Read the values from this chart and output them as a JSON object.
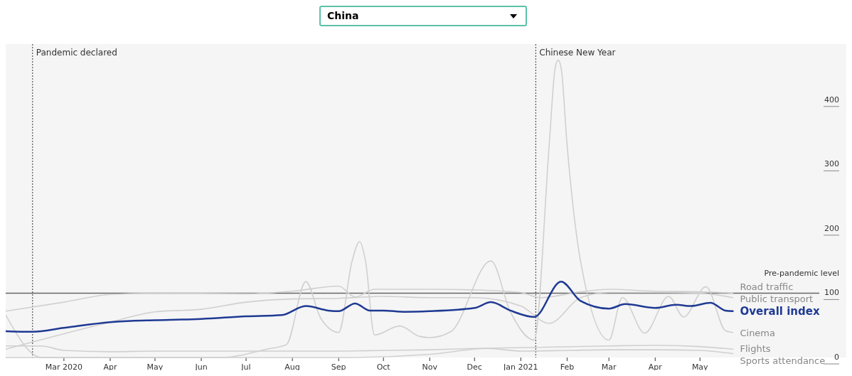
{
  "chart_data": {
    "type": "line",
    "title": "China",
    "xlim": [
      "2020-01-22",
      "2021-08-07"
    ],
    "xticks": [
      {
        "value": "2020-03-01",
        "label": "Mar 2020"
      },
      {
        "value": "2020-04-01",
        "label": "Apr"
      },
      {
        "value": "2020-05-01",
        "label": "May"
      },
      {
        "value": "2020-06-01",
        "label": "Jun"
      },
      {
        "value": "2020-07-01",
        "label": "Jul"
      },
      {
        "value": "2020-08-01",
        "label": "Aug"
      },
      {
        "value": "2020-09-01",
        "label": "Sep"
      },
      {
        "value": "2020-10-01",
        "label": "Oct"
      },
      {
        "value": "2020-11-01",
        "label": "Nov"
      },
      {
        "value": "2020-12-01",
        "label": "Dec"
      },
      {
        "value": "2021-01-01",
        "label": "Jan 2021"
      },
      {
        "value": "2021-02-01",
        "label": "Feb"
      },
      {
        "value": "2021-03-01",
        "label": "Mar"
      },
      {
        "value": "2021-04-01",
        "label": "Apr"
      },
      {
        "value": "2021-05-01",
        "label": "May"
      }
    ],
    "ylim": [
      0,
      487
    ],
    "yticks": [
      0,
      100,
      200,
      300,
      400
    ],
    "ref_lines": [
      {
        "axis": "y",
        "value": 100,
        "label": "Pre-pandemic level",
        "color": "#666666",
        "line_style": "solid"
      },
      {
        "axis": "x",
        "value": "2020-02-09",
        "label": "Pandemic declared",
        "color": "#333333",
        "line_style": "dotted"
      },
      {
        "axis": "x",
        "value": "2021-01-11",
        "label": "Chinese New Year",
        "color": "#333333",
        "line_style": "dotted"
      }
    ],
    "series": [
      {
        "name": "Road traffic",
        "color": "#d0d0d0",
        "x": [
          "2020-01-22",
          "2020-03-01",
          "2020-04-01",
          "2020-05-01",
          "2020-07-01",
          "2020-08-01",
          "2020-09-01",
          "2020-09-12",
          "2020-09-25",
          "2020-11-01",
          "2020-12-01",
          "2021-01-01",
          "2021-01-14",
          "2021-02-10",
          "2021-03-01",
          "2021-04-01",
          "2021-05-01",
          "2021-05-23"
        ],
        "values": [
          72,
          86,
          98,
          100,
          99,
          103,
          111,
          94,
          106,
          106,
          105,
          101,
          93,
          102,
          106,
          103,
          102,
          100
        ]
      },
      {
        "name": "Public transport",
        "color": "#d0d0d0",
        "x": [
          "2020-01-22",
          "2020-04-01",
          "2020-05-01",
          "2020-06-01",
          "2020-07-01",
          "2020-08-01",
          "2020-09-01",
          "2020-10-01",
          "2020-11-01",
          "2020-12-01",
          "2021-01-01",
          "2021-01-20",
          "2021-02-10",
          "2021-03-01",
          "2021-04-01",
          "2021-05-01",
          "2021-05-23"
        ],
        "values": [
          13,
          55,
          71,
          75,
          86,
          91,
          92,
          95,
          93,
          93,
          80,
          53,
          93,
          101,
          101,
          100,
          93
        ]
      },
      {
        "name": "Overall index",
        "color": "#1f3a93",
        "x": [
          "2020-01-22",
          "2020-02-09",
          "2020-03-01",
          "2020-04-01",
          "2020-04-15",
          "2020-05-01",
          "2020-06-01",
          "2020-07-01",
          "2020-07-25",
          "2020-08-10",
          "2020-08-25",
          "2020-09-01",
          "2020-09-12",
          "2020-09-22",
          "2020-10-01",
          "2020-10-15",
          "2020-11-01",
          "2020-12-01",
          "2020-12-12",
          "2020-12-25",
          "2021-01-10",
          "2021-01-28",
          "2021-02-10",
          "2021-03-01",
          "2021-03-12",
          "2021-04-01",
          "2021-04-15",
          "2021-04-25",
          "2021-05-08",
          "2021-05-18",
          "2021-05-23"
        ],
        "values": [
          41,
          40,
          46,
          55,
          57,
          58,
          60,
          64,
          66,
          80,
          73,
          72,
          84,
          73,
          73,
          71,
          72,
          77,
          86,
          73,
          63,
          118,
          88,
          76,
          83,
          77,
          82,
          80,
          85,
          73,
          72
        ]
      },
      {
        "name": "Cinema",
        "color": "#d0d0d0",
        "x": [
          "2020-01-22",
          "2020-02-15",
          "2020-06-15",
          "2020-07-15",
          "2020-07-28",
          "2020-08-10",
          "2020-08-20",
          "2020-09-01",
          "2020-09-10",
          "2020-09-15",
          "2020-09-19",
          "2020-09-25",
          "2020-10-12",
          "2020-10-25",
          "2020-11-01",
          "2020-11-15",
          "2020-12-12",
          "2020-12-25",
          "2021-01-10",
          "2021-01-20",
          "2021-01-24",
          "2021-01-26",
          "2021-01-28",
          "2021-02-01",
          "2021-02-10",
          "2021-03-01",
          "2021-03-10",
          "2021-03-25",
          "2021-04-10",
          "2021-04-20",
          "2021-05-05",
          "2021-05-18",
          "2021-05-23"
        ],
        "values": [
          66,
          0,
          0,
          13,
          20,
          118,
          61,
          39,
          150,
          180,
          150,
          35,
          49,
          33,
          31,
          40,
          150,
          71,
          27,
          330,
          450,
          462,
          450,
          330,
          150,
          27,
          93,
          38,
          95,
          63,
          110,
          42,
          39
        ]
      },
      {
        "name": "Flights",
        "color": "#d0d0d0",
        "x": [
          "2020-01-22",
          "2020-02-15",
          "2020-03-01",
          "2020-04-01",
          "2020-05-01",
          "2020-07-01",
          "2020-09-01",
          "2020-10-01",
          "2020-11-01",
          "2020-12-01",
          "2021-03-01",
          "2021-04-01",
          "2021-05-01",
          "2021-05-23"
        ],
        "values": [
          18,
          18,
          11,
          9,
          10,
          10,
          10,
          11,
          12,
          14,
          18,
          19,
          17,
          13
        ]
      },
      {
        "name": "Sports attendance",
        "color": "#d0d0d0",
        "x": [
          "2020-01-22",
          "2020-09-01",
          "2020-11-01",
          "2020-12-10",
          "2021-01-01",
          "2021-02-01",
          "2021-03-01",
          "2021-04-01",
          "2021-05-01",
          "2021-05-23"
        ],
        "values": [
          0,
          0,
          5,
          14,
          10,
          11,
          12,
          12,
          11,
          6
        ]
      }
    ]
  }
}
